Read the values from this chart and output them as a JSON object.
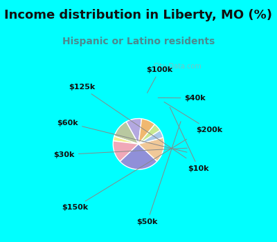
{
  "title": "Income distribution in Liberty, MO (%)",
  "subtitle": "Hispanic or Latino residents",
  "watermark": "City-Data.com",
  "labels": [
    "$100k",
    "$40k",
    "$200k",
    "$10k",
    "$50k",
    "$150k",
    "$30k",
    "$60k",
    "$125k"
  ],
  "sizes": [
    10,
    12,
    3,
    14,
    26,
    16,
    5,
    5,
    9
  ],
  "colors": [
    "#b3a8e0",
    "#b8c8a0",
    "#f0ee90",
    "#f0a8b8",
    "#9090d8",
    "#f0c898",
    "#a8c8e8",
    "#c8e890",
    "#f0b870"
  ],
  "bg_cyan": "#00ffff",
  "bg_chart": "#d8ede4",
  "title_color": "#111111",
  "subtitle_color": "#4a8a90",
  "label_color": "#111111",
  "figsize": [
    4.0,
    3.5
  ],
  "dpi": 100,
  "start_angle": 83,
  "title_fontsize": 13,
  "subtitle_fontsize": 10,
  "label_fontsize": 8
}
